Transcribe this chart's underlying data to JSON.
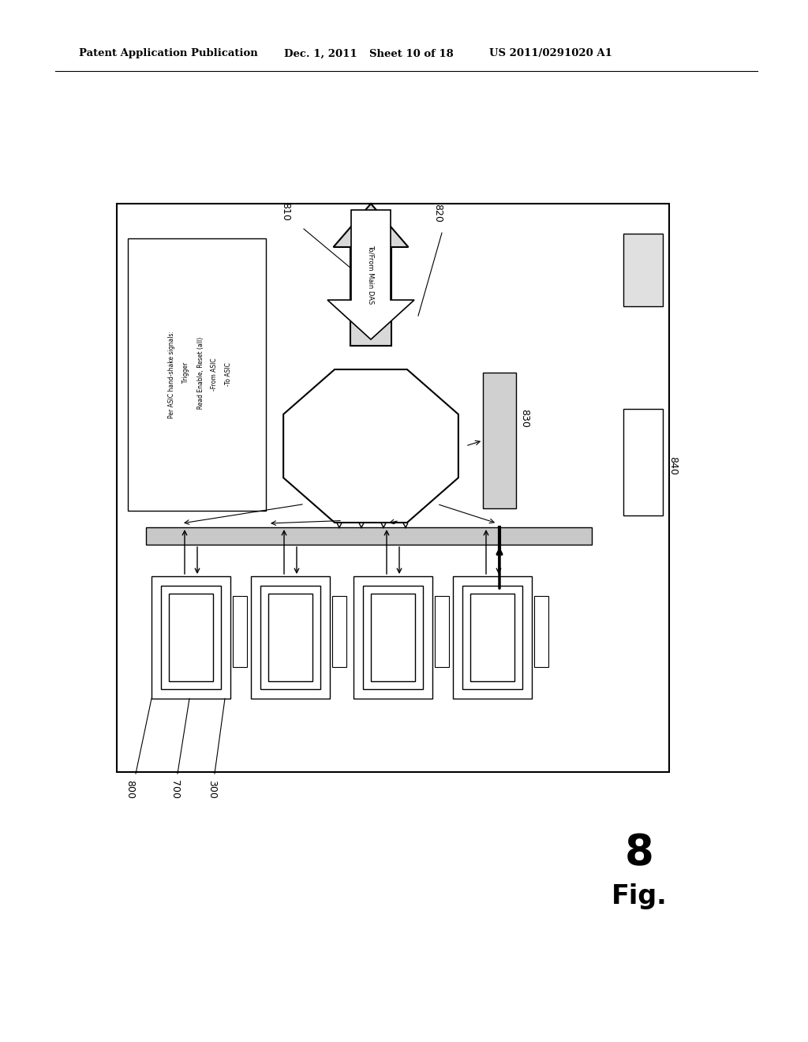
{
  "bg_color": "#ffffff",
  "header_text": "Patent Application Publication",
  "header_date": "Dec. 1, 2011",
  "header_sheet": "Sheet 10 of 18",
  "header_patent": "US 2011/0291020 A1",
  "fig_label": "Fig. 8",
  "label_800": "800",
  "label_700": "700",
  "label_300": "300",
  "label_810": "810",
  "label_820": "820",
  "label_830": "830",
  "label_840": "840",
  "arrow_label": "To/From Main DAS",
  "legend_line1": "Per ASIC hand-shake signals:",
  "legend_line2": "  Trigger",
  "legend_line3": "  Read Enable, Reset (all)",
  "legend_line4": "-From ASIC",
  "legend_line5": "-To ASIC"
}
